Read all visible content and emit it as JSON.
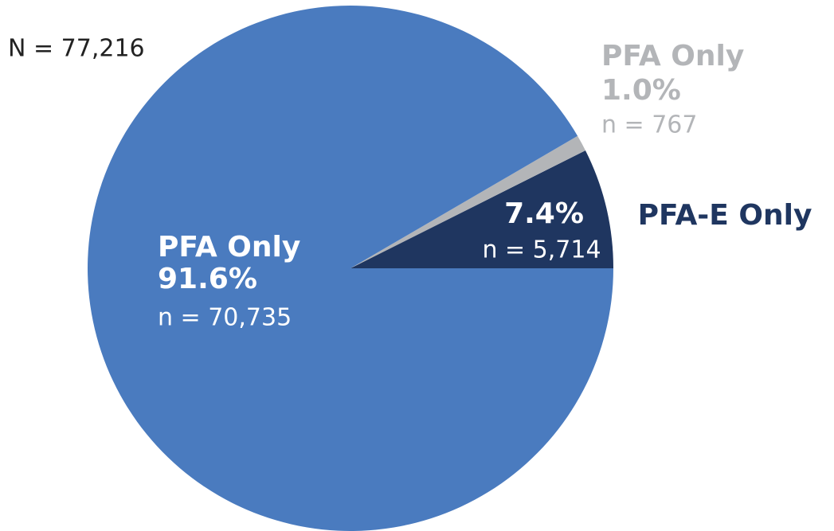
{
  "chart_data": {
    "type": "pie",
    "annotation": "N = 77,216",
    "categories": [
      "PFA-E Only",
      "PFA Only",
      "PFA Only"
    ],
    "values": [
      7.4,
      1.0,
      91.6
    ],
    "value_labels": [
      "7.4%",
      "1.0%",
      "91.6%"
    ],
    "sample_labels": [
      "n = 5,714",
      "n = 767",
      "n = 70,735"
    ],
    "colors": [
      "#1f3660",
      "#b3b5b8",
      "#4a7bbf"
    ]
  }
}
